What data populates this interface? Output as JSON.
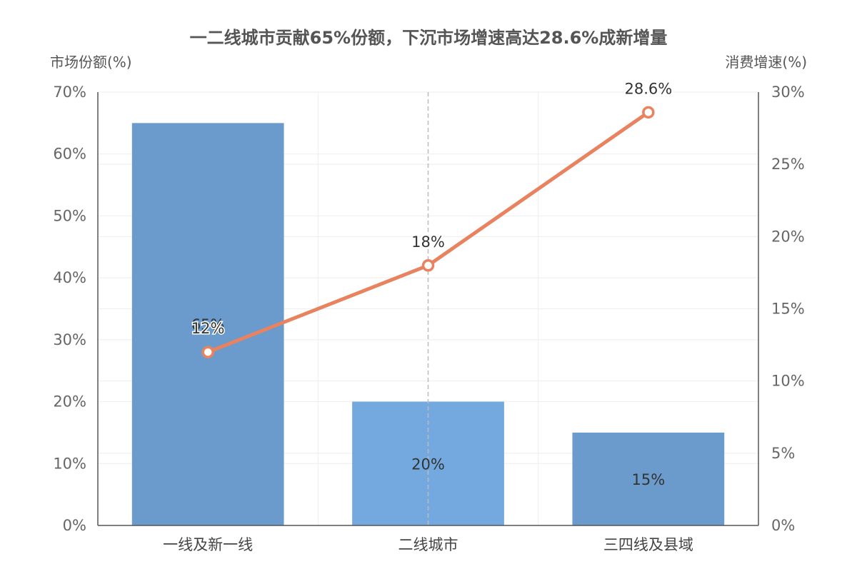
{
  "chart_data": {
    "type": "bar",
    "title": "一二线城市贡献65%份额，下沉市场增速高达28.6%成新增量",
    "categories": [
      "一线及新一线",
      "二线城市",
      "三四线及县域"
    ],
    "y_left": {
      "label": "市场份额(%)",
      "range": [
        0,
        70
      ],
      "ticks": [
        0,
        10,
        20,
        30,
        40,
        50,
        60,
        70
      ],
      "tick_labels": [
        "0%",
        "10%",
        "20%",
        "30%",
        "40%",
        "50%",
        "60%",
        "70%"
      ]
    },
    "y_right": {
      "label": "消费增速(%)",
      "range": [
        0,
        30
      ],
      "ticks": [
        0,
        5,
        10,
        15,
        20,
        25,
        30
      ],
      "tick_labels": [
        "0%",
        "5%",
        "10%",
        "15%",
        "20%",
        "25%",
        "30%"
      ]
    },
    "series": [
      {
        "type": "bar",
        "axis": "left",
        "values": [
          65,
          20,
          15
        ],
        "labels": [
          "65%",
          "20%",
          "15%"
        ],
        "colors": [
          "#6a9bcc",
          "#74a9df",
          "#6a9bcc"
        ]
      },
      {
        "type": "line",
        "axis": "right",
        "values": [
          12,
          18,
          28.6
        ],
        "labels": [
          "12%",
          "18%",
          "28.6%"
        ],
        "color": "#e8825f"
      }
    ],
    "grid": true,
    "axis_pointer_category": "二线城市"
  }
}
